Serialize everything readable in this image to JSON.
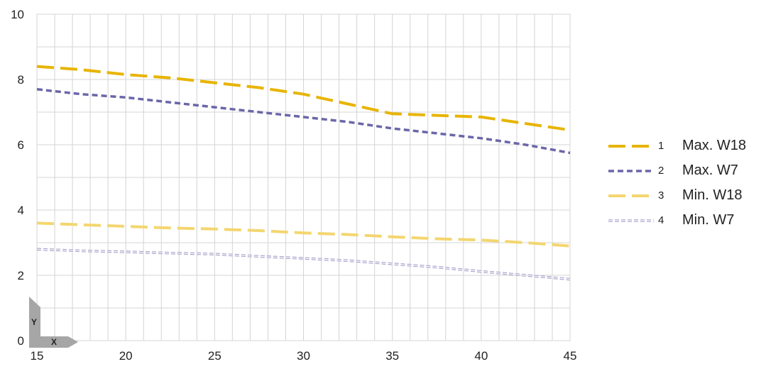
{
  "chart_data": {
    "type": "line",
    "x": [
      15,
      17.5,
      20,
      22.5,
      25,
      27.5,
      30,
      32.5,
      35,
      37.5,
      40,
      42.5,
      45
    ],
    "xlim": [
      15,
      45
    ],
    "ylim": [
      0,
      10
    ],
    "x_ticks": [
      15,
      20,
      25,
      30,
      35,
      40,
      45
    ],
    "y_ticks": [
      0,
      2,
      4,
      6,
      8,
      10
    ],
    "grid": true,
    "legend_position": "right",
    "axis_glyph": {
      "x": "X",
      "y": "Y"
    },
    "series": [
      {
        "num": "1",
        "name": "Max. W18",
        "color": "#E8B400",
        "style": "long-dash",
        "values": [
          8.4,
          8.3,
          8.15,
          8.05,
          7.9,
          7.75,
          7.55,
          7.25,
          6.95,
          6.9,
          6.85,
          6.65,
          6.45
        ]
      },
      {
        "num": "2",
        "name": "Max. W7",
        "color": "#6B66A8",
        "style": "short-dash",
        "values": [
          7.7,
          7.55,
          7.45,
          7.3,
          7.15,
          7.0,
          6.85,
          6.7,
          6.5,
          6.35,
          6.2,
          6.0,
          5.75
        ]
      },
      {
        "num": "3",
        "name": "Min. W18",
        "color": "#F3D670",
        "style": "long-dash",
        "values": [
          3.6,
          3.55,
          3.5,
          3.45,
          3.42,
          3.37,
          3.3,
          3.25,
          3.18,
          3.12,
          3.08,
          3.0,
          2.9
        ]
      },
      {
        "num": "4",
        "name": "Min. W7",
        "color": "#A6A3CC",
        "style": "double-dot",
        "values": [
          2.8,
          2.75,
          2.72,
          2.68,
          2.65,
          2.58,
          2.52,
          2.45,
          2.35,
          2.25,
          2.12,
          2.0,
          1.88
        ]
      }
    ]
  }
}
